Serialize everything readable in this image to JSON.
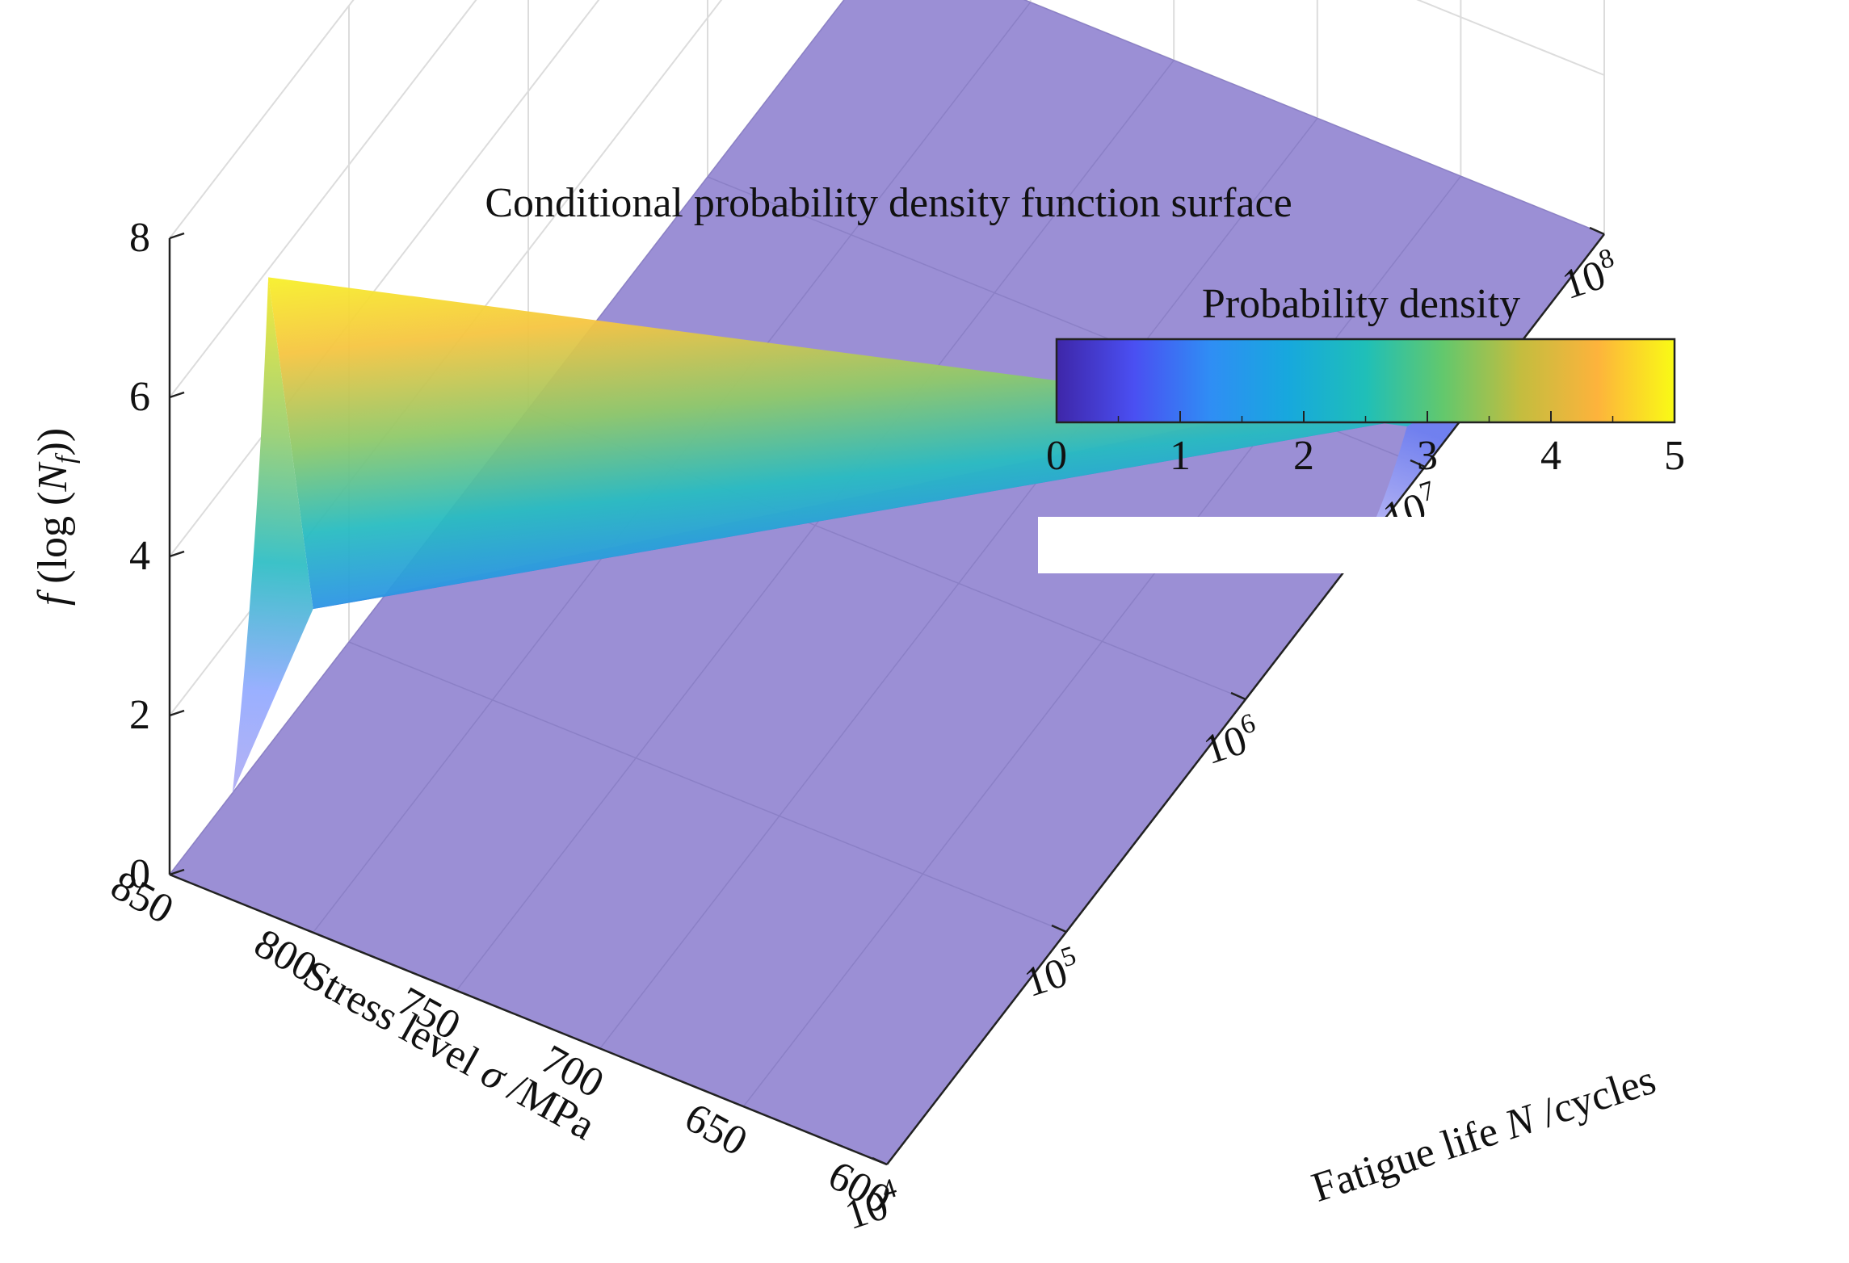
{
  "chart_data": {
    "type": "surface3d",
    "title": "Conditional probability density function surface",
    "zlabel": {
      "italic": "f",
      "pre": " (log (",
      "var": "N",
      "sub": "f",
      "post": "))"
    },
    "xlabel": {
      "pre": "Fatigue life ",
      "var": "N",
      "post": " /cycles"
    },
    "ylabel": {
      "pre": "Stress  level ",
      "var": "σ",
      "post": " /MPa"
    },
    "x_scale": "log10",
    "x_range": [
      4,
      8
    ],
    "x_ticks": [
      {
        "base": "10",
        "exp": "4",
        "value": 4
      },
      {
        "base": "10",
        "exp": "5",
        "value": 5
      },
      {
        "base": "10",
        "exp": "6",
        "value": 6
      },
      {
        "base": "10",
        "exp": "7",
        "value": 7
      },
      {
        "base": "10",
        "exp": "8",
        "value": 8
      }
    ],
    "y_range": [
      600,
      850
    ],
    "y_ticks": [
      "850",
      "800",
      "750",
      "700",
      "650",
      "600"
    ],
    "z_range": [
      0,
      8
    ],
    "z_ticks": [
      "0",
      "2",
      "4",
      "6",
      "8"
    ],
    "colorbar": {
      "title": "Probability density",
      "ticks": [
        "0",
        "1",
        "2",
        "3",
        "4",
        "5"
      ],
      "range": [
        0,
        5
      ],
      "colormap": [
        "#3e26a8",
        "#4a4ff2",
        "#2f8ef4",
        "#17a8dd",
        "#1fbfb8",
        "#62c86d",
        "#c3bd3f",
        "#fdb33c",
        "#f9fb15"
      ]
    },
    "surface_peak_ridge": [
      {
        "stress": 850,
        "log_life": 4.55,
        "density": 5.9
      },
      {
        "stress": 600,
        "log_life": 6.9,
        "density": 0.8
      }
    ],
    "surface_trough_ridge": [
      {
        "stress": 850,
        "log_life": 4.55,
        "density": 1.0
      },
      {
        "stress": 600,
        "log_life": 6.9,
        "density": 0.0
      }
    ],
    "floor_color": "#9b8fd5"
  }
}
